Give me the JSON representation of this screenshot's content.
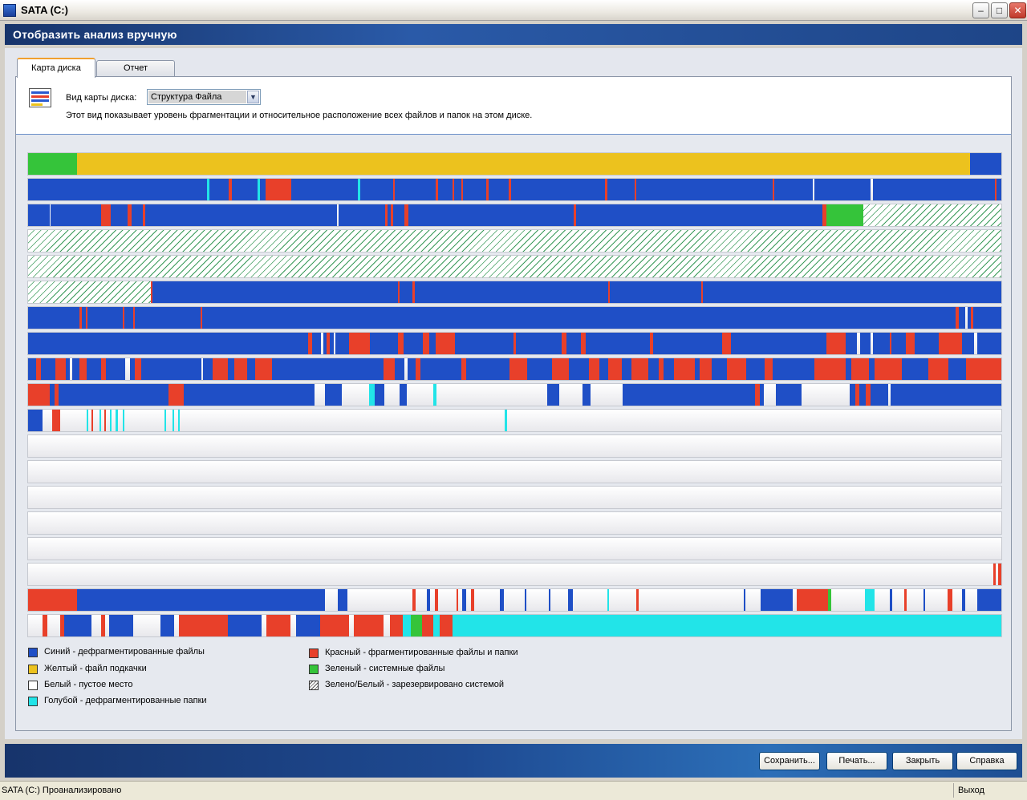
{
  "window": {
    "title": "SATA (C:)"
  },
  "header": {
    "title": "Отобразить анализ вручную"
  },
  "tabs": [
    {
      "label": "Карта диска"
    },
    {
      "label": "Отчет"
    }
  ],
  "view": {
    "label": "Вид карты диска:",
    "selected": "Структура Файла",
    "description": "Этот вид показывает уровень фрагментации и относительное расположение всех файлов и папок на этом диске."
  },
  "colors": {
    "blue": "#1f4fc6",
    "red": "#e8402a",
    "yellow": "#ecc21e",
    "white": "#f2f2f4",
    "green": "#35c43a",
    "cyan": "#22e4e8",
    "reserved": "hatched"
  },
  "legend": [
    {
      "key": "blue",
      "label": "Синий - дефрагментированные файлы"
    },
    {
      "key": "yellow",
      "label": "Желтый - файл подкачки"
    },
    {
      "key": "white",
      "label": "Белый - пустое место"
    },
    {
      "key": "cyan",
      "label": "Голубой - дефрагментированные папки"
    },
    {
      "key": "red",
      "label": "Красный - фрагментированные файлы и папки"
    },
    {
      "key": "green",
      "label": "Зеленый - системные файлы"
    },
    {
      "key": "reserved",
      "label": "Зелено/Белый - зарезервировано системой"
    }
  ],
  "buttons": {
    "save": "Сохранить...",
    "print": "Печать...",
    "close": "Закрыть",
    "help": "Справка"
  },
  "status": {
    "text": "SATA (C:) Проанализировано",
    "right": "Выход"
  },
  "disk_map": [
    {
      "base": "yellow",
      "segments": [
        [
          "green",
          0,
          5
        ],
        [
          "blue",
          96.8,
          100
        ]
      ]
    },
    {
      "base": "blue",
      "segments": [
        [
          "red",
          24.4,
          27
        ],
        [
          "red",
          20.6,
          20.9
        ],
        [
          "red",
          37.5,
          37.7
        ],
        [
          "red",
          41.9,
          42.1
        ],
        [
          "red",
          43.6,
          43.8
        ],
        [
          "red",
          44.5,
          44.7
        ],
        [
          "red",
          47.1,
          47.3
        ],
        [
          "red",
          49.4,
          49.6
        ],
        [
          "red",
          59.3,
          59.5
        ],
        [
          "red",
          62.3,
          62.5
        ],
        [
          "red",
          76.5,
          76.7
        ],
        [
          "red",
          99.3,
          99.5
        ],
        [
          "cyan",
          18.4,
          18.6
        ],
        [
          "cyan",
          23.6,
          23.8
        ],
        [
          "cyan",
          33.9,
          34.1
        ],
        [
          "white",
          80.6,
          80.8
        ],
        [
          "white",
          86.6,
          86.8
        ]
      ]
    },
    {
      "base": "blue",
      "segments": [
        [
          "white",
          2.2,
          2.35
        ],
        [
          "red",
          7.5,
          8.5
        ],
        [
          "red",
          10.2,
          10.6
        ],
        [
          "red",
          11.8,
          12
        ],
        [
          "white",
          31.7,
          31.9
        ],
        [
          "red",
          36.7,
          36.9
        ],
        [
          "red",
          37.3,
          37.5
        ],
        [
          "red",
          38.7,
          39.1
        ],
        [
          "red",
          56.1,
          56.3
        ],
        [
          "red",
          81.6,
          82
        ],
        [
          "green",
          82,
          85.8
        ]
      ],
      "tail": 85.8
    },
    {
      "base": "reserved",
      "segments": []
    },
    {
      "base": "reserved",
      "segments": []
    },
    {
      "base": "blue",
      "segments": [
        [
          "red",
          12.6,
          12.8
        ],
        [
          "red",
          38,
          38.15
        ],
        [
          "red",
          39.5,
          39.7
        ],
        [
          "red",
          59.6,
          59.8
        ],
        [
          "red",
          69.2,
          69.35
        ]
      ],
      "head": 12.7
    },
    {
      "base": "blue",
      "segments": [
        [
          "red",
          5.3,
          5.5
        ],
        [
          "red",
          5.9,
          6.1
        ],
        [
          "red",
          9.7,
          9.9
        ],
        [
          "red",
          10.8,
          11
        ],
        [
          "red",
          17.7,
          17.9
        ],
        [
          "red",
          95.3,
          95.6
        ],
        [
          "white",
          96.3,
          96.5
        ],
        [
          "red",
          96.9,
          97.1
        ]
      ]
    },
    {
      "base": "blue",
      "segments": [
        [
          "red",
          28.8,
          29.2
        ],
        [
          "red",
          30.7,
          31
        ],
        [
          "white",
          30.1,
          30.3
        ],
        [
          "white",
          31.4,
          31.6
        ],
        [
          "red",
          33,
          35.1
        ],
        [
          "red",
          38,
          38.6
        ],
        [
          "red",
          40.6,
          41.2
        ],
        [
          "red",
          41.9,
          43.9
        ],
        [
          "red",
          49.9,
          50.1
        ],
        [
          "red",
          54.8,
          55.3
        ],
        [
          "red",
          56.8,
          57.3
        ],
        [
          "red",
          63.9,
          64.2
        ],
        [
          "red",
          71.3,
          72.2
        ],
        [
          "red",
          82,
          84
        ],
        [
          "white",
          85.2,
          85.5
        ],
        [
          "white",
          86.6,
          86.8
        ],
        [
          "red",
          88.5,
          88.7
        ],
        [
          "red",
          90.2,
          91.1
        ],
        [
          "red",
          93.6,
          96
        ],
        [
          "white",
          97.2,
          97.5
        ]
      ]
    },
    {
      "base": "blue",
      "segments": [
        [
          "red",
          0.8,
          1.3
        ],
        [
          "red",
          2.8,
          3.9
        ],
        [
          "white",
          4.3,
          4.5
        ],
        [
          "red",
          5.3,
          6
        ],
        [
          "red",
          7.5,
          8
        ],
        [
          "white",
          10,
          10.5
        ],
        [
          "red",
          11,
          11.6
        ],
        [
          "white",
          17.8,
          18
        ],
        [
          "red",
          19,
          20.5
        ],
        [
          "red",
          21.2,
          22.5
        ],
        [
          "red",
          23.3,
          25.1
        ],
        [
          "red",
          36.5,
          37.7
        ],
        [
          "white",
          38.7,
          39
        ],
        [
          "red",
          39.8,
          40.3
        ],
        [
          "red",
          44.5,
          45
        ],
        [
          "red",
          49.5,
          51.3
        ],
        [
          "red",
          53.8,
          55.6
        ],
        [
          "red",
          57.6,
          58.7
        ],
        [
          "red",
          59.6,
          61
        ],
        [
          "red",
          62,
          63.7
        ],
        [
          "red",
          64.8,
          65.3
        ],
        [
          "red",
          66.4,
          68.5
        ],
        [
          "red",
          69,
          70.2
        ],
        [
          "red",
          71.8,
          73.8
        ],
        [
          "red",
          75.7,
          76.5
        ],
        [
          "red",
          80.8,
          84
        ],
        [
          "red",
          84.6,
          86.4
        ],
        [
          "red",
          87,
          89.8
        ],
        [
          "red",
          92.5,
          94.6
        ],
        [
          "red",
          96.4,
          100
        ]
      ]
    },
    {
      "base": "blue",
      "segments": [
        [
          "red",
          0,
          2.2
        ],
        [
          "red",
          2.7,
          3.1
        ],
        [
          "red",
          14.4,
          16
        ],
        [
          "white",
          29.4,
          30.5
        ],
        [
          "white",
          32.2,
          35
        ],
        [
          "cyan",
          35,
          35.6
        ],
        [
          "white",
          36.6,
          38.2
        ],
        [
          "white",
          38.9,
          41.6
        ],
        [
          "cyan",
          41.6,
          42
        ],
        [
          "white",
          42,
          53.3
        ],
        [
          "white",
          54.6,
          57
        ],
        [
          "white",
          57.8,
          61.1
        ],
        [
          "red",
          74.7,
          75.2
        ],
        [
          "white",
          75.6,
          76.8
        ],
        [
          "white",
          79.5,
          84.4
        ],
        [
          "red",
          85,
          85.4
        ],
        [
          "red",
          86.1,
          86.6
        ],
        [
          "white",
          88.4,
          88.6
        ]
      ]
    },
    {
      "base": "white",
      "segments": [
        [
          "blue",
          0,
          1.5
        ],
        [
          "red",
          2.5,
          3.3
        ],
        [
          "cyan",
          6,
          6.2
        ],
        [
          "red",
          6.5,
          6.7
        ],
        [
          "cyan",
          7.3,
          7.5
        ],
        [
          "red",
          7.8,
          8
        ],
        [
          "cyan",
          8.4,
          8.6
        ],
        [
          "cyan",
          9,
          9.2
        ],
        [
          "cyan",
          9.7,
          9.9
        ],
        [
          "cyan",
          14,
          14.2
        ],
        [
          "cyan",
          14.8,
          15
        ],
        [
          "cyan",
          15.4,
          15.6
        ],
        [
          "cyan",
          49,
          49.2
        ]
      ]
    },
    {
      "base": "white",
      "segments": []
    },
    {
      "base": "white",
      "segments": []
    },
    {
      "base": "white",
      "segments": []
    },
    {
      "base": "white",
      "segments": []
    },
    {
      "base": "white",
      "segments": []
    },
    {
      "base": "white",
      "segments": [
        [
          "red",
          99.2,
          99.4
        ],
        [
          "red",
          99.7,
          100
        ]
      ]
    },
    {
      "base": "white",
      "segments": [
        [
          "red",
          0,
          5
        ],
        [
          "blue",
          5,
          30.5
        ],
        [
          "blue",
          31.8,
          32.8
        ],
        [
          "red",
          39.5,
          39.8
        ],
        [
          "blue",
          41,
          41.3
        ],
        [
          "red",
          41.8,
          42.1
        ],
        [
          "red",
          44,
          44.2
        ],
        [
          "blue",
          44.6,
          45
        ],
        [
          "red",
          45.5,
          45.8
        ],
        [
          "blue",
          48.5,
          48.9
        ],
        [
          "blue",
          51,
          51.2
        ],
        [
          "blue",
          53.5,
          53.7
        ],
        [
          "blue",
          55.5,
          56
        ],
        [
          "cyan",
          59.5,
          59.7
        ],
        [
          "red",
          62.5,
          62.7
        ],
        [
          "blue",
          73.5,
          73.7
        ],
        [
          "blue",
          75.3,
          78.6
        ],
        [
          "red",
          79,
          82.2
        ],
        [
          "green",
          82.2,
          82.5
        ],
        [
          "cyan",
          86,
          87
        ],
        [
          "blue",
          88.5,
          88.8
        ],
        [
          "red",
          90,
          90.3
        ],
        [
          "blue",
          92,
          92.2
        ],
        [
          "red",
          94.5,
          95
        ],
        [
          "blue",
          96,
          96.3
        ],
        [
          "blue",
          97.5,
          100
        ]
      ]
    },
    {
      "base": "white",
      "segments": [
        [
          "red",
          1.5,
          2
        ],
        [
          "red",
          3.3,
          3.7
        ],
        [
          "blue",
          3.7,
          6.5
        ],
        [
          "red",
          7.5,
          7.9
        ],
        [
          "blue",
          8.3,
          10.8
        ],
        [
          "blue",
          13.6,
          15
        ],
        [
          "red",
          15.5,
          20.5
        ],
        [
          "blue",
          20.5,
          24
        ],
        [
          "red",
          24.5,
          27
        ],
        [
          "blue",
          27.5,
          30
        ],
        [
          "red",
          30,
          33
        ],
        [
          "red",
          33.5,
          36.5
        ],
        [
          "red",
          37.2,
          38.5
        ],
        [
          "cyan",
          38.5,
          39.3
        ],
        [
          "green",
          39.3,
          40.5
        ],
        [
          "red",
          40.5,
          41.6
        ],
        [
          "cyan",
          41.6,
          42.3
        ],
        [
          "red",
          42.3,
          43.6
        ],
        [
          "cyan",
          43.6,
          100
        ]
      ]
    }
  ]
}
